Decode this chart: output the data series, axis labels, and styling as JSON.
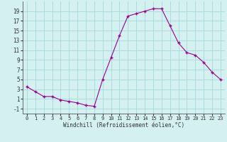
{
  "hours": [
    0,
    1,
    2,
    3,
    4,
    5,
    6,
    7,
    8,
    9,
    10,
    11,
    12,
    13,
    14,
    15,
    16,
    17,
    18,
    19,
    20,
    21,
    22,
    23
  ],
  "windchill": [
    3.5,
    2.5,
    1.5,
    1.5,
    0.8,
    0.5,
    0.2,
    -0.3,
    -0.5,
    5.0,
    9.5,
    14.0,
    18.0,
    18.5,
    19.0,
    19.5,
    19.5,
    16.0,
    12.5,
    10.5,
    10.0,
    8.5,
    6.5,
    5.0
  ],
  "line_color": "#990099",
  "marker_color": "#990099",
  "bg_color": "#d4f0f0",
  "grid_color": "#aadddd",
  "axis_line_color": "#555555",
  "xlabel": "Windchill (Refroidissement éolien,°C)",
  "ylim": [
    -2,
    21
  ],
  "yticks": [
    -1,
    1,
    3,
    5,
    7,
    9,
    11,
    13,
    15,
    17,
    19
  ],
  "xlim": [
    -0.5,
    23.5
  ],
  "xticks": [
    0,
    1,
    2,
    3,
    4,
    5,
    6,
    7,
    8,
    9,
    10,
    11,
    12,
    13,
    14,
    15,
    16,
    17,
    18,
    19,
    20,
    21,
    22,
    23
  ]
}
